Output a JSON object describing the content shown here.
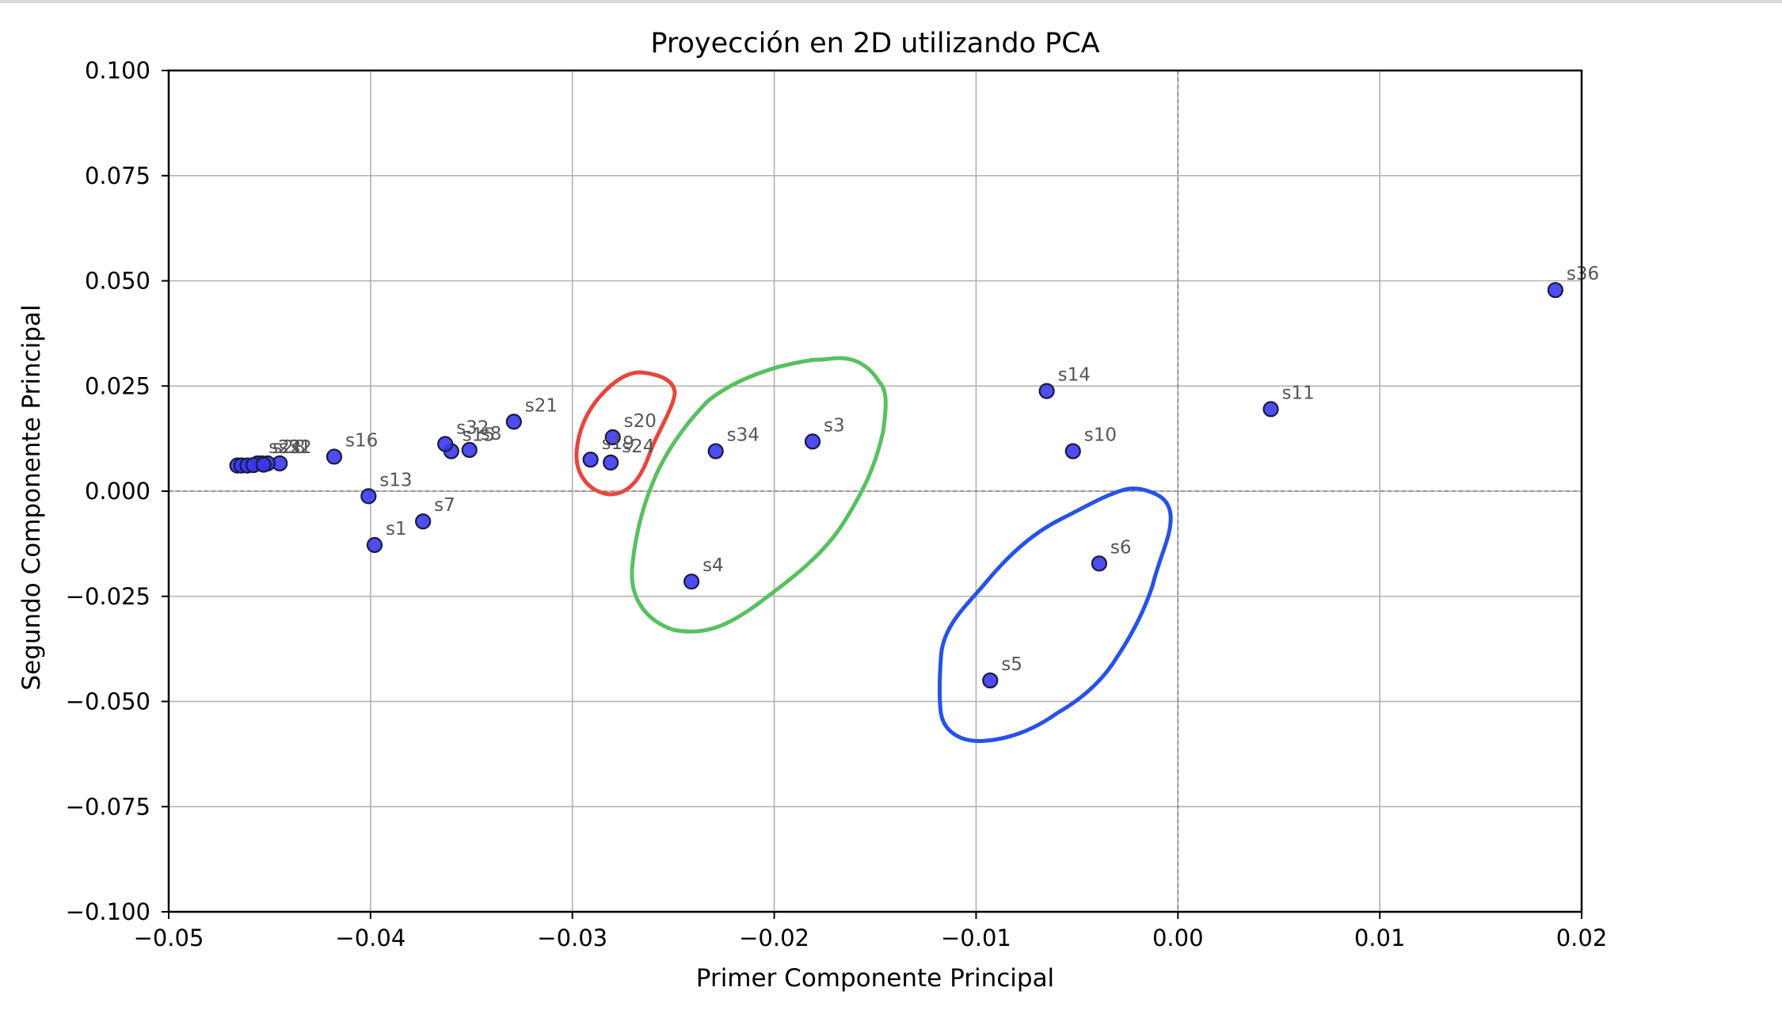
{
  "chart_data": {
    "type": "scatter",
    "title": "Proyección en 2D utilizando PCA",
    "xlabel": "Primer Componente Principal",
    "ylabel": "Segundo Componente Principal",
    "xlim": [
      -0.05,
      0.02
    ],
    "ylim": [
      -0.1,
      0.1
    ],
    "xticks": [
      -0.05,
      -0.04,
      -0.03,
      -0.02,
      -0.01,
      0.0,
      0.01,
      0.02
    ],
    "xtick_labels": [
      "−0.05",
      "−0.04",
      "−0.03",
      "−0.02",
      "−0.01",
      "0.00",
      "0.01",
      "0.02"
    ],
    "yticks": [
      0.1,
      0.075,
      0.05,
      0.025,
      0.0,
      -0.025,
      -0.05,
      -0.075,
      -0.1
    ],
    "ytick_labels": [
      "0.100",
      "0.075",
      "0.050",
      "0.025",
      "0.000",
      "−0.025",
      "−0.050",
      "−0.075",
      "−0.100"
    ],
    "grid": true,
    "zero_lines": true,
    "marker_color": "#3a3af0",
    "marker_edge": "#1a1a40",
    "points": [
      {
        "label": "s36",
        "x": 0.0187,
        "y": 0.0478
      },
      {
        "label": "s11",
        "x": 0.0046,
        "y": 0.0195
      },
      {
        "label": "s14",
        "x": -0.0065,
        "y": 0.0238
      },
      {
        "label": "s10",
        "x": -0.0052,
        "y": 0.0095
      },
      {
        "label": "s6",
        "x": -0.0039,
        "y": -0.0172
      },
      {
        "label": "s5",
        "x": -0.0093,
        "y": -0.045
      },
      {
        "label": "s3",
        "x": -0.0181,
        "y": 0.0118
      },
      {
        "label": "s34",
        "x": -0.0229,
        "y": 0.0095
      },
      {
        "label": "s4",
        "x": -0.0241,
        "y": -0.0215
      },
      {
        "label": "s20",
        "x": -0.028,
        "y": 0.0128
      },
      {
        "label": "s24",
        "x": -0.0281,
        "y": 0.0068
      },
      {
        "label": "s19",
        "x": -0.0291,
        "y": 0.0075
      },
      {
        "label": "s21",
        "x": -0.0329,
        "y": 0.0165
      },
      {
        "label": "s8",
        "x": -0.0351,
        "y": 0.0098
      },
      {
        "label": "s15",
        "x": -0.036,
        "y": 0.0095
      },
      {
        "label": "s32",
        "x": -0.0363,
        "y": 0.0112
      },
      {
        "label": "s16",
        "x": -0.0418,
        "y": 0.0082
      },
      {
        "label": "s13",
        "x": -0.0401,
        "y": -0.0012
      },
      {
        "label": "s7",
        "x": -0.0374,
        "y": -0.0072
      },
      {
        "label": "s1",
        "x": -0.0398,
        "y": -0.0128
      },
      {
        "label": "s2",
        "x": -0.0445,
        "y": 0.0066
      },
      {
        "label": "s31",
        "x": -0.0451,
        "y": 0.0066
      },
      {
        "label": "s28",
        "x": -0.0454,
        "y": 0.0066
      },
      {
        "label": "s22",
        "x": -0.0456,
        "y": 0.0066
      },
      {
        "label": "",
        "x": -0.0466,
        "y": 0.0061
      },
      {
        "label": "",
        "x": -0.0464,
        "y": 0.0061
      },
      {
        "label": "",
        "x": -0.0461,
        "y": 0.0061
      },
      {
        "label": "",
        "x": -0.0458,
        "y": 0.0062
      },
      {
        "label": "",
        "x": -0.0453,
        "y": 0.0063
      }
    ],
    "annotations": [
      {
        "shape": "freehand-loop",
        "color": "#e5463c",
        "encloses": [
          "s20",
          "s19",
          "s24"
        ]
      },
      {
        "shape": "freehand-loop",
        "color": "#58c060",
        "encloses": [
          "s34",
          "s3",
          "s4"
        ]
      },
      {
        "shape": "freehand-loop",
        "color": "#2752e8",
        "encloses": [
          "s6",
          "s5"
        ]
      }
    ]
  }
}
